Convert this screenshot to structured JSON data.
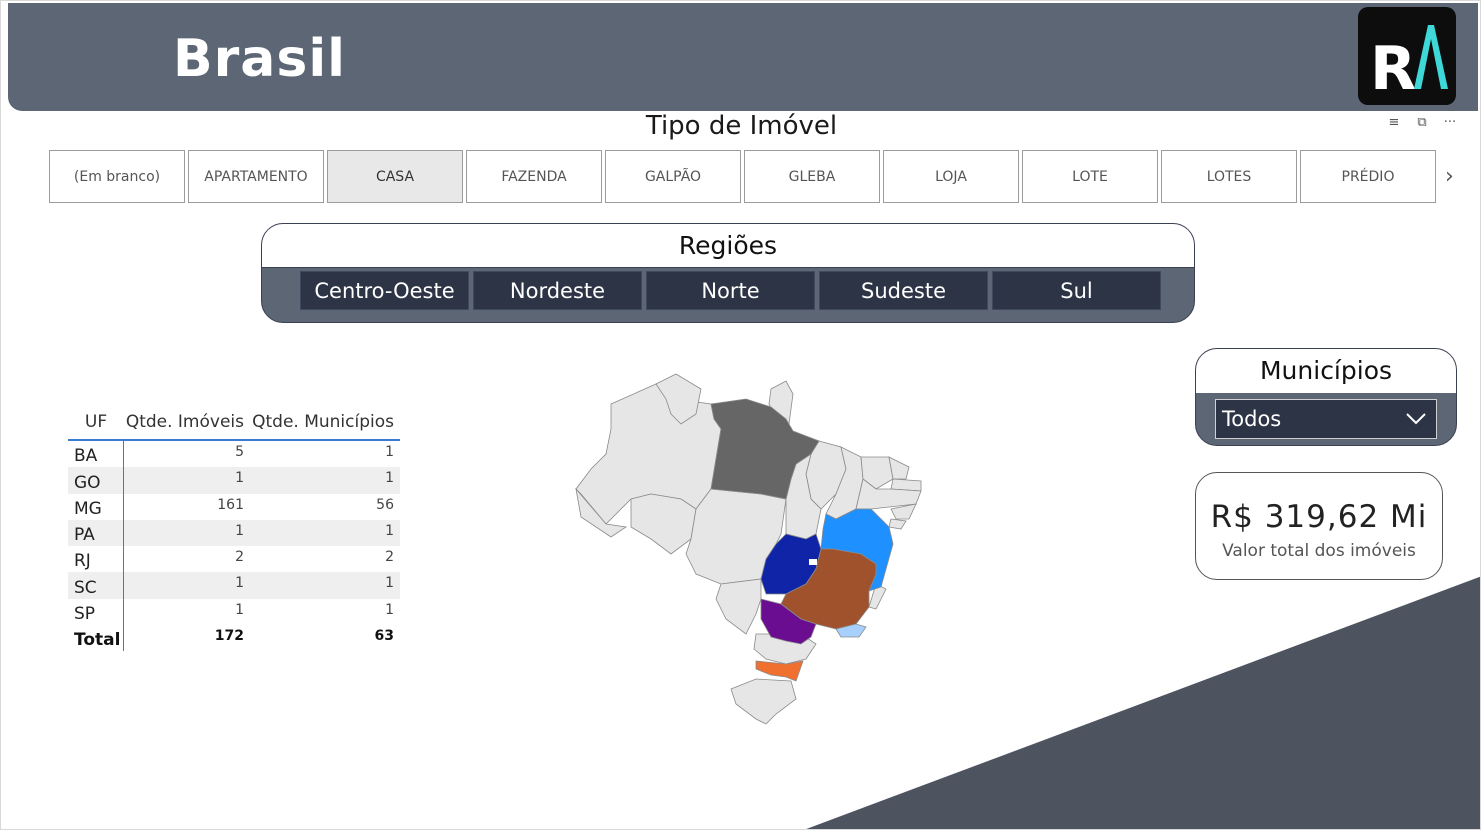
{
  "header": {
    "title": "Brasil",
    "logo_text": "RA"
  },
  "visual_toolbar": {
    "icons": [
      "filter-icon",
      "focus-mode-icon",
      "more-options-icon"
    ]
  },
  "property_type_slicer": {
    "title": "Tipo de Imóvel",
    "options": [
      "(Em branco)",
      "APARTAMENTO",
      "CASA",
      "FAZENDA",
      "GALPÃO",
      "GLEBA",
      "LOJA",
      "LOTE",
      "LOTES",
      "PRÉDIO"
    ],
    "selected": "CASA"
  },
  "regions_slicer": {
    "title": "Regiões",
    "options": [
      "Centro-Oeste",
      "Nordeste",
      "Norte",
      "Sudeste",
      "Sul"
    ]
  },
  "table": {
    "headers": [
      "UF",
      "Qtde. Imóveis",
      "Qtde. Municípios"
    ],
    "rows": [
      {
        "uf": "BA",
        "imoveis": "5",
        "municipios": "1"
      },
      {
        "uf": "GO",
        "imoveis": "1",
        "municipios": "1"
      },
      {
        "uf": "MG",
        "imoveis": "161",
        "municipios": "56"
      },
      {
        "uf": "PA",
        "imoveis": "1",
        "municipios": "1"
      },
      {
        "uf": "RJ",
        "imoveis": "2",
        "municipios": "2"
      },
      {
        "uf": "SC",
        "imoveis": "1",
        "municipios": "1"
      },
      {
        "uf": "SP",
        "imoveis": "1",
        "municipios": "1"
      }
    ],
    "total": {
      "uf": "Total",
      "imoveis": "172",
      "municipios": "63"
    }
  },
  "municipios_slicer": {
    "title": "Municípios",
    "value": "Todos"
  },
  "kpi": {
    "value": "R$ 319,62 Mi",
    "label": "Valor total dos imóveis"
  },
  "colors": {
    "header": "#5d6675",
    "slicer_button": "#2c3446",
    "table_accent": "#3a7bd5",
    "state_PA": "#666666",
    "state_BA": "#1e90ff",
    "state_GO": "#0f24a6",
    "state_MG": "#a0522d",
    "state_SP": "#6a0d91",
    "state_RJ": "#a8d0ff",
    "state_SC": "#f07030",
    "state_other": "#e6e6e6"
  }
}
